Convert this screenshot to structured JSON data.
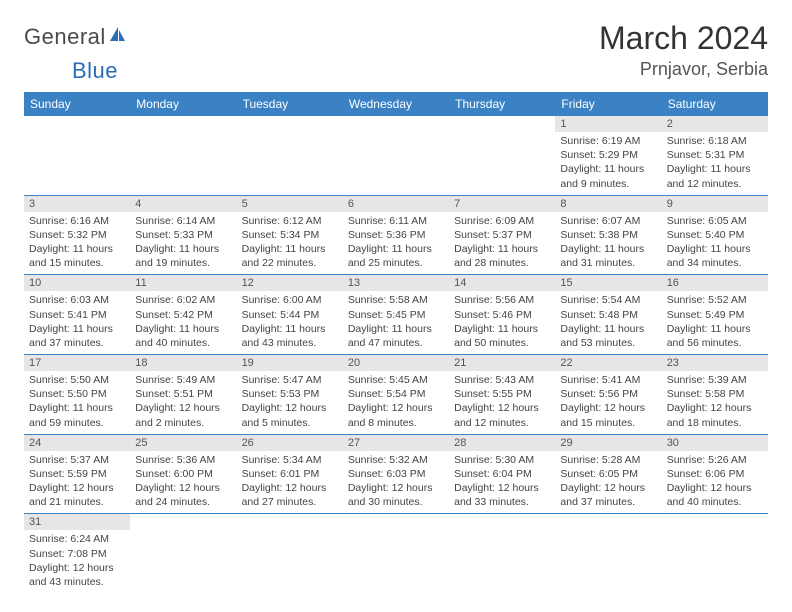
{
  "logo": {
    "general": "General",
    "blue": "Blue"
  },
  "header": {
    "month": "March 2024",
    "location": "Prnjavor, Serbia"
  },
  "weekdays": [
    "Sunday",
    "Monday",
    "Tuesday",
    "Wednesday",
    "Thursday",
    "Friday",
    "Saturday"
  ],
  "colors": {
    "header_bg": "#3b82c4",
    "daynum_bg": "#e6e6e6"
  },
  "weeks": [
    [
      null,
      null,
      null,
      null,
      null,
      {
        "n": "1",
        "sr": "Sunrise: 6:19 AM",
        "ss": "Sunset: 5:29 PM",
        "dl": "Daylight: 11 hours and 9 minutes."
      },
      {
        "n": "2",
        "sr": "Sunrise: 6:18 AM",
        "ss": "Sunset: 5:31 PM",
        "dl": "Daylight: 11 hours and 12 minutes."
      }
    ],
    [
      {
        "n": "3",
        "sr": "Sunrise: 6:16 AM",
        "ss": "Sunset: 5:32 PM",
        "dl": "Daylight: 11 hours and 15 minutes."
      },
      {
        "n": "4",
        "sr": "Sunrise: 6:14 AM",
        "ss": "Sunset: 5:33 PM",
        "dl": "Daylight: 11 hours and 19 minutes."
      },
      {
        "n": "5",
        "sr": "Sunrise: 6:12 AM",
        "ss": "Sunset: 5:34 PM",
        "dl": "Daylight: 11 hours and 22 minutes."
      },
      {
        "n": "6",
        "sr": "Sunrise: 6:11 AM",
        "ss": "Sunset: 5:36 PM",
        "dl": "Daylight: 11 hours and 25 minutes."
      },
      {
        "n": "7",
        "sr": "Sunrise: 6:09 AM",
        "ss": "Sunset: 5:37 PM",
        "dl": "Daylight: 11 hours and 28 minutes."
      },
      {
        "n": "8",
        "sr": "Sunrise: 6:07 AM",
        "ss": "Sunset: 5:38 PM",
        "dl": "Daylight: 11 hours and 31 minutes."
      },
      {
        "n": "9",
        "sr": "Sunrise: 6:05 AM",
        "ss": "Sunset: 5:40 PM",
        "dl": "Daylight: 11 hours and 34 minutes."
      }
    ],
    [
      {
        "n": "10",
        "sr": "Sunrise: 6:03 AM",
        "ss": "Sunset: 5:41 PM",
        "dl": "Daylight: 11 hours and 37 minutes."
      },
      {
        "n": "11",
        "sr": "Sunrise: 6:02 AM",
        "ss": "Sunset: 5:42 PM",
        "dl": "Daylight: 11 hours and 40 minutes."
      },
      {
        "n": "12",
        "sr": "Sunrise: 6:00 AM",
        "ss": "Sunset: 5:44 PM",
        "dl": "Daylight: 11 hours and 43 minutes."
      },
      {
        "n": "13",
        "sr": "Sunrise: 5:58 AM",
        "ss": "Sunset: 5:45 PM",
        "dl": "Daylight: 11 hours and 47 minutes."
      },
      {
        "n": "14",
        "sr": "Sunrise: 5:56 AM",
        "ss": "Sunset: 5:46 PM",
        "dl": "Daylight: 11 hours and 50 minutes."
      },
      {
        "n": "15",
        "sr": "Sunrise: 5:54 AM",
        "ss": "Sunset: 5:48 PM",
        "dl": "Daylight: 11 hours and 53 minutes."
      },
      {
        "n": "16",
        "sr": "Sunrise: 5:52 AM",
        "ss": "Sunset: 5:49 PM",
        "dl": "Daylight: 11 hours and 56 minutes."
      }
    ],
    [
      {
        "n": "17",
        "sr": "Sunrise: 5:50 AM",
        "ss": "Sunset: 5:50 PM",
        "dl": "Daylight: 11 hours and 59 minutes."
      },
      {
        "n": "18",
        "sr": "Sunrise: 5:49 AM",
        "ss": "Sunset: 5:51 PM",
        "dl": "Daylight: 12 hours and 2 minutes."
      },
      {
        "n": "19",
        "sr": "Sunrise: 5:47 AM",
        "ss": "Sunset: 5:53 PM",
        "dl": "Daylight: 12 hours and 5 minutes."
      },
      {
        "n": "20",
        "sr": "Sunrise: 5:45 AM",
        "ss": "Sunset: 5:54 PM",
        "dl": "Daylight: 12 hours and 8 minutes."
      },
      {
        "n": "21",
        "sr": "Sunrise: 5:43 AM",
        "ss": "Sunset: 5:55 PM",
        "dl": "Daylight: 12 hours and 12 minutes."
      },
      {
        "n": "22",
        "sr": "Sunrise: 5:41 AM",
        "ss": "Sunset: 5:56 PM",
        "dl": "Daylight: 12 hours and 15 minutes."
      },
      {
        "n": "23",
        "sr": "Sunrise: 5:39 AM",
        "ss": "Sunset: 5:58 PM",
        "dl": "Daylight: 12 hours and 18 minutes."
      }
    ],
    [
      {
        "n": "24",
        "sr": "Sunrise: 5:37 AM",
        "ss": "Sunset: 5:59 PM",
        "dl": "Daylight: 12 hours and 21 minutes."
      },
      {
        "n": "25",
        "sr": "Sunrise: 5:36 AM",
        "ss": "Sunset: 6:00 PM",
        "dl": "Daylight: 12 hours and 24 minutes."
      },
      {
        "n": "26",
        "sr": "Sunrise: 5:34 AM",
        "ss": "Sunset: 6:01 PM",
        "dl": "Daylight: 12 hours and 27 minutes."
      },
      {
        "n": "27",
        "sr": "Sunrise: 5:32 AM",
        "ss": "Sunset: 6:03 PM",
        "dl": "Daylight: 12 hours and 30 minutes."
      },
      {
        "n": "28",
        "sr": "Sunrise: 5:30 AM",
        "ss": "Sunset: 6:04 PM",
        "dl": "Daylight: 12 hours and 33 minutes."
      },
      {
        "n": "29",
        "sr": "Sunrise: 5:28 AM",
        "ss": "Sunset: 6:05 PM",
        "dl": "Daylight: 12 hours and 37 minutes."
      },
      {
        "n": "30",
        "sr": "Sunrise: 5:26 AM",
        "ss": "Sunset: 6:06 PM",
        "dl": "Daylight: 12 hours and 40 minutes."
      }
    ],
    [
      {
        "n": "31",
        "sr": "Sunrise: 6:24 AM",
        "ss": "Sunset: 7:08 PM",
        "dl": "Daylight: 12 hours and 43 minutes."
      },
      null,
      null,
      null,
      null,
      null,
      null
    ]
  ]
}
